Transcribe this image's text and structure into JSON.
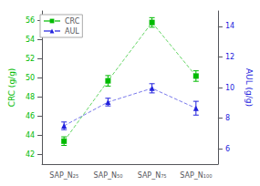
{
  "chart_data": {
    "type": "line",
    "categories": [
      "SAP_N₂₅",
      "SAP_N₅₀",
      "SAP_N₇₅",
      "SAP_N₁₀₀"
    ],
    "series": [
      {
        "name": "CRC",
        "color": "#00bb00",
        "marker": "square",
        "line_style": "dashed",
        "values": [
          43.4,
          49.7,
          55.8,
          50.2
        ],
        "errors": [
          0.45,
          0.55,
          0.5,
          0.55
        ]
      },
      {
        "name": "AUL",
        "color": "#2222dd",
        "marker": "triangle",
        "line_style": "dashed",
        "axis": "y2",
        "values": [
          7.5,
          9.05,
          9.95,
          8.65
        ],
        "errors": [
          0.25,
          0.25,
          0.3,
          0.45
        ]
      }
    ],
    "ylabel": "CRC (g/g)",
    "y2label": "AUL (g/g)",
    "ylim": [
      41,
      57
    ],
    "yticks": [
      42,
      44,
      46,
      48,
      50,
      52,
      54,
      56
    ],
    "y2lim": [
      5,
      15
    ],
    "y2ticks": [
      6,
      8,
      10,
      12,
      14
    ],
    "grid": false,
    "legend": "upper left"
  }
}
